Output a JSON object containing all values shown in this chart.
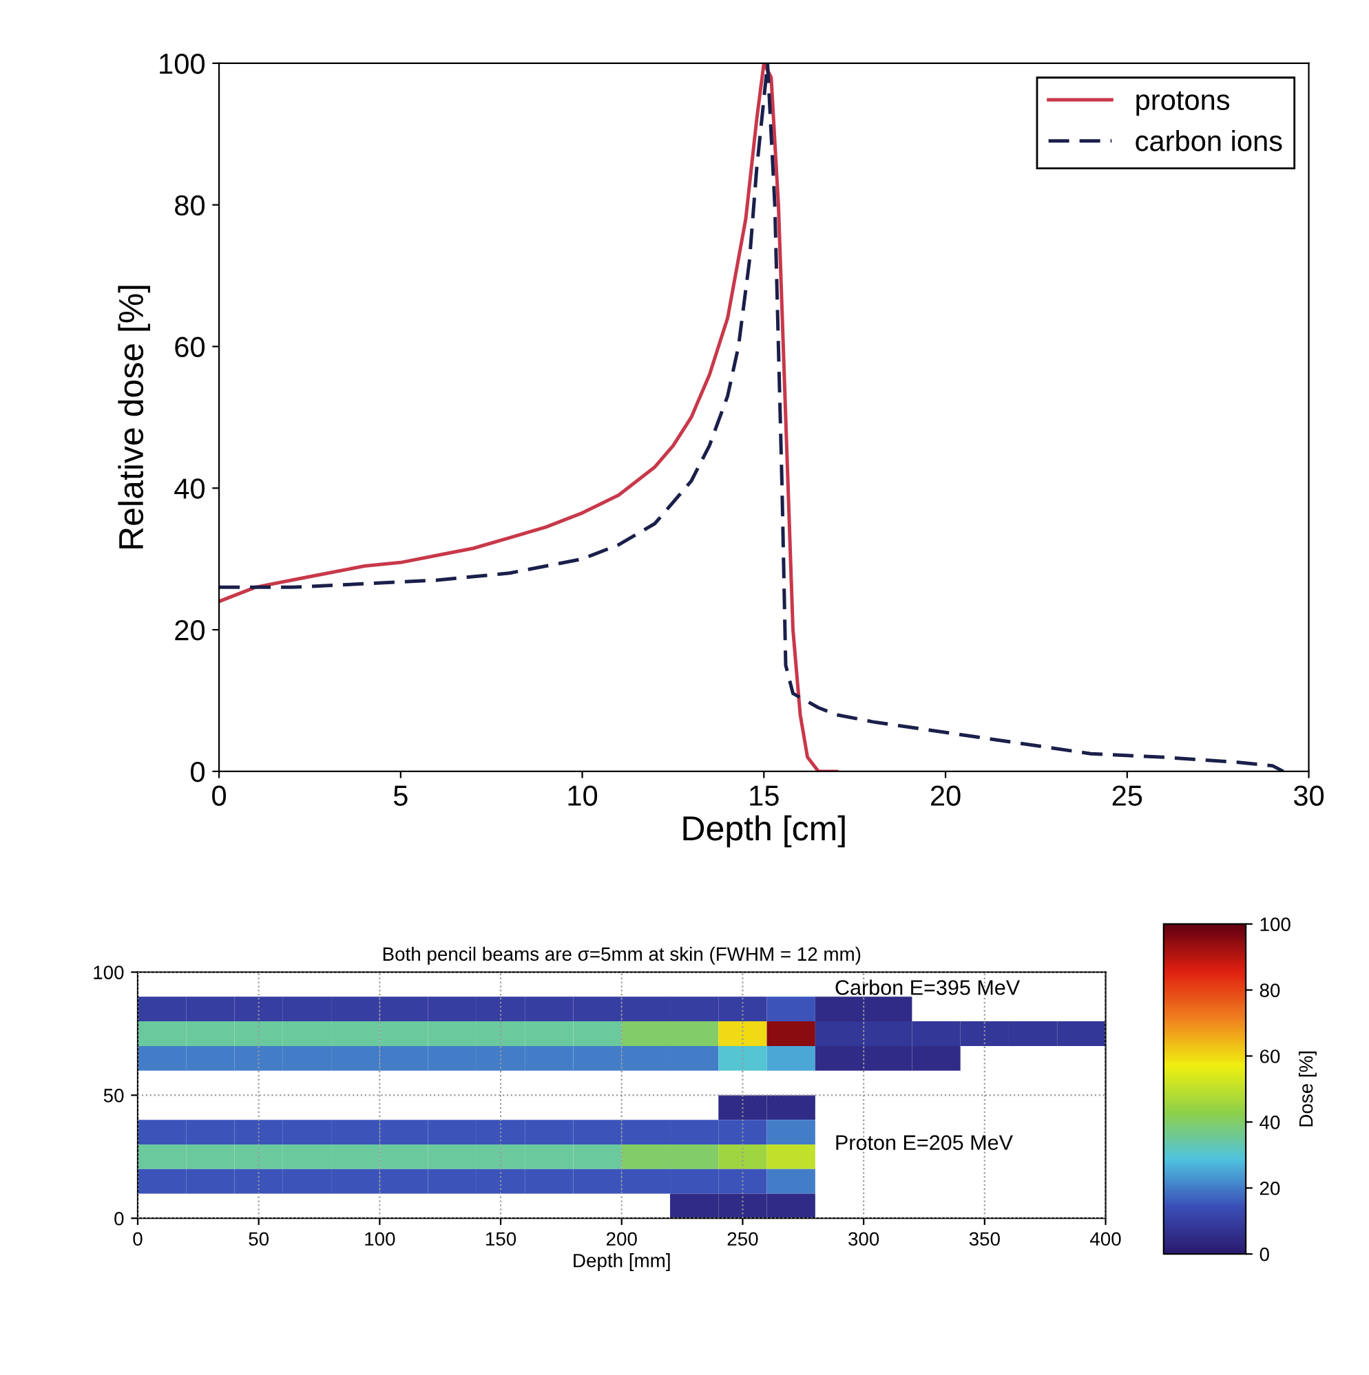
{
  "chart_data": [
    {
      "type": "line",
      "xlabel": "Depth [cm]",
      "ylabel": "Relative dose [%]",
      "xlim": [
        0,
        30
      ],
      "ylim": [
        0,
        100
      ],
      "xticks": [
        0,
        5,
        10,
        15,
        20,
        25,
        30
      ],
      "yticks": [
        0,
        20,
        40,
        60,
        80,
        100
      ],
      "grid": false,
      "legend": "top right",
      "series": [
        {
          "name": "protons",
          "color": "#c8384a",
          "line_style": "solid",
          "x": [
            0,
            1,
            2,
            3,
            4,
            5,
            6,
            7,
            8,
            9,
            10,
            11,
            12,
            12.5,
            13,
            13.5,
            14,
            14.5,
            14.8,
            15,
            15.2,
            15.4,
            15.6,
            15.8,
            16,
            16.2,
            16.5,
            17
          ],
          "values": [
            24,
            26,
            27,
            28,
            29,
            29.5,
            30.5,
            31.5,
            33,
            34.5,
            36.5,
            39,
            43,
            46,
            50,
            56,
            64,
            78,
            92,
            100,
            98,
            80,
            50,
            20,
            8,
            2,
            0,
            0
          ]
        },
        {
          "name": "carbon ions",
          "color": "#1a1f4a",
          "line_style": "dashed",
          "x": [
            0,
            2,
            4,
            6,
            8,
            9,
            10,
            11,
            12,
            12.5,
            13,
            13.5,
            14,
            14.3,
            14.6,
            14.8,
            15,
            15.1,
            15.3,
            15.5,
            15.6,
            15.8,
            16.5,
            17,
            18,
            20,
            22,
            24,
            26,
            28,
            29,
            29.3
          ],
          "values": [
            26,
            26,
            26.5,
            27,
            28,
            29,
            30,
            32,
            35,
            38,
            41,
            46,
            53,
            60,
            72,
            85,
            95,
            100,
            80,
            40,
            15,
            11,
            9,
            8,
            7,
            5.5,
            4,
            2.5,
            2,
            1.3,
            0.8,
            0
          ]
        }
      ]
    },
    {
      "type": "heatmap",
      "title": "Both pencil beams are σ=5mm at skin (FWHM = 12 mm)",
      "xlabel": "Depth [mm]",
      "clabel": "Dose [%]",
      "xlim": [
        0,
        400
      ],
      "ylim": [
        0,
        100
      ],
      "xticks": [
        0,
        50,
        100,
        150,
        200,
        250,
        300,
        350,
        400
      ],
      "yticks": [
        0,
        50,
        100
      ],
      "grid": true,
      "clim": [
        0,
        100
      ],
      "cticks": [
        0,
        20,
        40,
        60,
        80,
        100
      ],
      "colors": [
        "#2a1a6e",
        "#3b4fb8",
        "#4fc3e0",
        "#8fd04a",
        "#f0f010",
        "#f08020",
        "#e02010",
        "#600010"
      ],
      "x": [
        10,
        30,
        50,
        70,
        90,
        110,
        130,
        150,
        170,
        190,
        210,
        230,
        250,
        270,
        290,
        310,
        330,
        350,
        370,
        390
      ],
      "y": [
        85,
        75,
        65,
        45,
        35,
        25,
        15,
        5
      ],
      "cells": [
        [
          10,
          10,
          10,
          10,
          10,
          10,
          10,
          10,
          10,
          10,
          10,
          10,
          10,
          15,
          5,
          5,
          null,
          null,
          null,
          null
        ],
        [
          35,
          35,
          35,
          35,
          35,
          35,
          35,
          35,
          35,
          35,
          40,
          40,
          60,
          95,
          8,
          8,
          8,
          8,
          8,
          8
        ],
        [
          20,
          20,
          20,
          20,
          20,
          20,
          20,
          20,
          20,
          20,
          20,
          20,
          30,
          25,
          5,
          5,
          5,
          null,
          null,
          null
        ],
        [
          null,
          null,
          null,
          null,
          null,
          null,
          null,
          null,
          null,
          null,
          null,
          null,
          5,
          5,
          null,
          null,
          null,
          null,
          null,
          null
        ],
        [
          15,
          15,
          15,
          15,
          15,
          15,
          15,
          15,
          15,
          15,
          15,
          15,
          15,
          20,
          null,
          null,
          null,
          null,
          null,
          null
        ],
        [
          35,
          35,
          35,
          35,
          35,
          35,
          35,
          35,
          35,
          35,
          40,
          40,
          45,
          50,
          null,
          null,
          null,
          null,
          null,
          null
        ],
        [
          15,
          15,
          15,
          15,
          15,
          15,
          15,
          15,
          15,
          15,
          15,
          15,
          15,
          20,
          null,
          null,
          null,
          null,
          null,
          null
        ],
        [
          null,
          null,
          null,
          null,
          null,
          null,
          null,
          null,
          null,
          null,
          null,
          5,
          5,
          5,
          null,
          null,
          null,
          null,
          null,
          null
        ]
      ],
      "annotations": [
        "Carbon E=395 MeV",
        "Proton E=205 MeV"
      ]
    }
  ]
}
